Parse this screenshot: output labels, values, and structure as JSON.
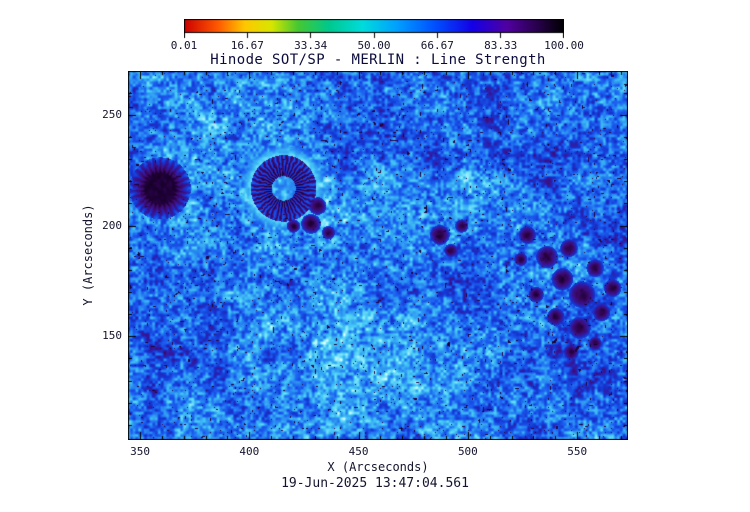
{
  "colors": {
    "background": "#ffffff",
    "title": "#0c0c3c",
    "text": "#14142e",
    "axis": "#000000"
  },
  "chart_data": {
    "type": "heatmap",
    "title": "Hinode SOT/SP - MERLIN : Line Strength",
    "xlabel": "X (Arcseconds)",
    "ylabel": "Y (Arcseconds)",
    "caption": "19-Jun-2025 13:47:04.561",
    "x_range": [
      344.5,
      572.8
    ],
    "y_range": [
      103.6,
      269.8
    ],
    "x_ticks": [
      350,
      400,
      450,
      500,
      550
    ],
    "y_ticks": [
      150,
      200,
      250
    ],
    "minor_tick_step": 10,
    "colorbar": {
      "min_label": "0.01",
      "max_label": "100.00",
      "ticks": [
        "0.01",
        "16.67",
        "33.34",
        "50.00",
        "66.67",
        "83.33",
        "100.00"
      ],
      "gradient": [
        {
          "pos": 0.0,
          "color": "#cc0000"
        },
        {
          "pos": 0.09,
          "color": "#ff5a00"
        },
        {
          "pos": 0.16,
          "color": "#ffc800"
        },
        {
          "pos": 0.23,
          "color": "#d8e600"
        },
        {
          "pos": 0.3,
          "color": "#46c832"
        },
        {
          "pos": 0.38,
          "color": "#00c88c"
        },
        {
          "pos": 0.47,
          "color": "#00dcdc"
        },
        {
          "pos": 0.56,
          "color": "#00a0ff"
        },
        {
          "pos": 0.66,
          "color": "#0050ff"
        },
        {
          "pos": 0.76,
          "color": "#1400e6"
        },
        {
          "pos": 0.85,
          "color": "#5000a0"
        },
        {
          "pos": 0.93,
          "color": "#28004b"
        },
        {
          "pos": 1.0,
          "color": "#000000"
        }
      ]
    },
    "palette": [
      {
        "pos": 0.0,
        "color": "#000008"
      },
      {
        "pos": 0.08,
        "color": "#1c0032"
      },
      {
        "pos": 0.18,
        "color": "#3c0a69"
      },
      {
        "pos": 0.3,
        "color": "#35189e"
      },
      {
        "pos": 0.42,
        "color": "#1535d0"
      },
      {
        "pos": 0.55,
        "color": "#1b5ef0"
      },
      {
        "pos": 0.68,
        "color": "#2e97f2"
      },
      {
        "pos": 0.8,
        "color": "#46c8f5"
      },
      {
        "pos": 0.9,
        "color": "#7ae4fa"
      },
      {
        "pos": 1.0,
        "color": "#d8fbff"
      }
    ],
    "noise_seed": 7,
    "features": [
      {
        "type": "spot",
        "x": 359,
        "y": 217,
        "r_core": 7,
        "r_pen": 14,
        "filaments": 26
      },
      {
        "type": "ring",
        "x": 415.5,
        "y": 217,
        "r_in": 5.5,
        "r_out": 15,
        "filaments": 40
      },
      {
        "type": "blob",
        "x": 431,
        "y": 209,
        "r": 4
      },
      {
        "type": "blob",
        "x": 428,
        "y": 201,
        "r": 4.5
      },
      {
        "type": "blob",
        "x": 436,
        "y": 197,
        "r": 3
      },
      {
        "type": "blob",
        "x": 420,
        "y": 200,
        "r": 3
      },
      {
        "type": "blob",
        "x": 487,
        "y": 196,
        "r": 4.5
      },
      {
        "type": "blob",
        "x": 492,
        "y": 189,
        "r": 3
      },
      {
        "type": "blob",
        "x": 497,
        "y": 200,
        "r": 3
      },
      {
        "type": "blob",
        "x": 527,
        "y": 196,
        "r": 4
      },
      {
        "type": "blob",
        "x": 536,
        "y": 186,
        "r": 5
      },
      {
        "type": "blob",
        "x": 546,
        "y": 190,
        "r": 4
      },
      {
        "type": "blob",
        "x": 543,
        "y": 176,
        "r": 5
      },
      {
        "type": "blob",
        "x": 552,
        "y": 169,
        "r": 6
      },
      {
        "type": "blob",
        "x": 558,
        "y": 181,
        "r": 4
      },
      {
        "type": "blob",
        "x": 540,
        "y": 159,
        "r": 4
      },
      {
        "type": "blob",
        "x": 551,
        "y": 154,
        "r": 5
      },
      {
        "type": "blob",
        "x": 561,
        "y": 161,
        "r": 4
      },
      {
        "type": "blob",
        "x": 531,
        "y": 169,
        "r": 3.5
      },
      {
        "type": "blob",
        "x": 524,
        "y": 185,
        "r": 3
      },
      {
        "type": "blob",
        "x": 566,
        "y": 172,
        "r": 4
      },
      {
        "type": "blob",
        "x": 547,
        "y": 143,
        "r": 3.5
      },
      {
        "type": "blob",
        "x": 558,
        "y": 147,
        "r": 3
      }
    ]
  }
}
